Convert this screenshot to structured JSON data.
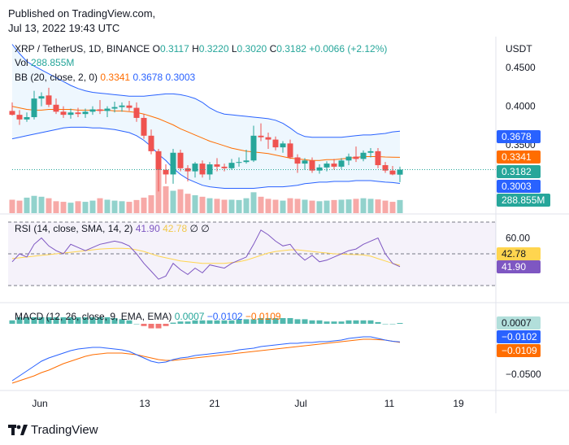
{
  "header": {
    "published": "Published on TradingView.com,",
    "date": "Jul 13, 2022 19:43 UTC"
  },
  "legend": {
    "symbol": "XRP / TetherUS, 1D, BINANCE",
    "o_label": "O",
    "o_value": "0.3117",
    "h_label": "H",
    "h_value": "0.3220",
    "l_label": "L",
    "l_value": "0.3020",
    "c_label": "C",
    "c_value": "0.3182",
    "change": "+0.0066 (+2.12%)",
    "vol_label": "Vol",
    "vol_value": "288.855M",
    "bb_label": "BB (20, close, 2, 0)",
    "bb_basis": "0.3341",
    "bb_upper": "0.3678",
    "bb_lower": "0.3003",
    "rsi_label": "RSI (14, close, SMA, 14, 2)",
    "rsi_value": "41.90",
    "rsi_sma": "42.78",
    "rsi_extra": "∅ ∅",
    "macd_label": "MACD (12, 26, close, 9, EMA, EMA)",
    "macd_hist": "0.0007",
    "macd_line": "−0.0102",
    "macd_signal": "−0.0109"
  },
  "axis": {
    "currency": "USDT",
    "price_ticks": [
      "0.4500",
      "0.4000",
      "0.3500"
    ],
    "rsi_ticks": [
      "60.00"
    ],
    "macd_ticks": [
      "−0.0500"
    ],
    "date_ticks": [
      "Jun",
      "13",
      "21",
      "Jul",
      "11",
      "19"
    ],
    "badges": {
      "bb_upper": "0.3678",
      "bb_basis": "0.3341",
      "close": "0.3182",
      "bb_lower": "0.3003",
      "volume": "288.855M",
      "rsi_sma": "42.78",
      "rsi": "41.90",
      "macd_hist": "0.0007",
      "macd_line": "−0.0102",
      "macd_signal": "−0.0109"
    }
  },
  "colors": {
    "up": "#26a69a",
    "down": "#ef5350",
    "bb_band": "#2962ff",
    "bb_basis": "#ff6d00",
    "rsi": "#7e57c2",
    "rsi_sma": "#ffd54f",
    "macd": "#2962ff",
    "signal": "#ff6d00"
  },
  "footer": {
    "brand": "TradingView"
  },
  "chart_data": {
    "type": "candlestick",
    "title": "XRP / TetherUS, 1D, BINANCE",
    "price_range": [
      0.262,
      0.49
    ],
    "candles": [
      {
        "o": 0.394,
        "h": 0.405,
        "l": 0.388,
        "c": 0.389
      },
      {
        "o": 0.389,
        "h": 0.395,
        "l": 0.376,
        "c": 0.383
      },
      {
        "o": 0.383,
        "h": 0.392,
        "l": 0.38,
        "c": 0.386
      },
      {
        "o": 0.386,
        "h": 0.42,
        "l": 0.383,
        "c": 0.41
      },
      {
        "o": 0.41,
        "h": 0.418,
        "l": 0.4,
        "c": 0.413
      },
      {
        "o": 0.414,
        "h": 0.424,
        "l": 0.399,
        "c": 0.402
      },
      {
        "o": 0.402,
        "h": 0.41,
        "l": 0.39,
        "c": 0.393
      },
      {
        "o": 0.393,
        "h": 0.4,
        "l": 0.385,
        "c": 0.389
      },
      {
        "o": 0.389,
        "h": 0.397,
        "l": 0.384,
        "c": 0.392
      },
      {
        "o": 0.392,
        "h": 0.398,
        "l": 0.386,
        "c": 0.39
      },
      {
        "o": 0.39,
        "h": 0.397,
        "l": 0.385,
        "c": 0.393
      },
      {
        "o": 0.393,
        "h": 0.4,
        "l": 0.389,
        "c": 0.396
      },
      {
        "o": 0.396,
        "h": 0.408,
        "l": 0.39,
        "c": 0.394
      },
      {
        "o": 0.394,
        "h": 0.4,
        "l": 0.386,
        "c": 0.397
      },
      {
        "o": 0.397,
        "h": 0.406,
        "l": 0.392,
        "c": 0.399
      },
      {
        "o": 0.399,
        "h": 0.405,
        "l": 0.393,
        "c": 0.401
      },
      {
        "o": 0.401,
        "h": 0.407,
        "l": 0.394,
        "c": 0.398
      },
      {
        "o": 0.398,
        "h": 0.405,
        "l": 0.38,
        "c": 0.385
      },
      {
        "o": 0.385,
        "h": 0.39,
        "l": 0.358,
        "c": 0.362
      },
      {
        "o": 0.362,
        "h": 0.37,
        "l": 0.338,
        "c": 0.342
      },
      {
        "o": 0.342,
        "h": 0.345,
        "l": 0.29,
        "c": 0.318
      },
      {
        "o": 0.318,
        "h": 0.325,
        "l": 0.3,
        "c": 0.312
      },
      {
        "o": 0.312,
        "h": 0.345,
        "l": 0.3,
        "c": 0.34
      },
      {
        "o": 0.34,
        "h": 0.344,
        "l": 0.316,
        "c": 0.32
      },
      {
        "o": 0.32,
        "h": 0.324,
        "l": 0.303,
        "c": 0.316
      },
      {
        "o": 0.316,
        "h": 0.328,
        "l": 0.308,
        "c": 0.326
      },
      {
        "o": 0.326,
        "h": 0.33,
        "l": 0.308,
        "c": 0.312
      },
      {
        "o": 0.312,
        "h": 0.328,
        "l": 0.305,
        "c": 0.325
      },
      {
        "o": 0.325,
        "h": 0.333,
        "l": 0.316,
        "c": 0.322
      },
      {
        "o": 0.322,
        "h": 0.326,
        "l": 0.316,
        "c": 0.32
      },
      {
        "o": 0.32,
        "h": 0.332,
        "l": 0.318,
        "c": 0.327
      },
      {
        "o": 0.327,
        "h": 0.334,
        "l": 0.322,
        "c": 0.328
      },
      {
        "o": 0.328,
        "h": 0.344,
        "l": 0.326,
        "c": 0.33
      },
      {
        "o": 0.33,
        "h": 0.375,
        "l": 0.328,
        "c": 0.362
      },
      {
        "o": 0.362,
        "h": 0.378,
        "l": 0.355,
        "c": 0.36
      },
      {
        "o": 0.36,
        "h": 0.366,
        "l": 0.345,
        "c": 0.357
      },
      {
        "o": 0.357,
        "h": 0.361,
        "l": 0.343,
        "c": 0.347
      },
      {
        "o": 0.347,
        "h": 0.355,
        "l": 0.34,
        "c": 0.352
      },
      {
        "o": 0.352,
        "h": 0.357,
        "l": 0.332,
        "c": 0.334
      },
      {
        "o": 0.334,
        "h": 0.338,
        "l": 0.314,
        "c": 0.326
      },
      {
        "o": 0.326,
        "h": 0.333,
        "l": 0.318,
        "c": 0.33
      },
      {
        "o": 0.33,
        "h": 0.334,
        "l": 0.314,
        "c": 0.317
      },
      {
        "o": 0.317,
        "h": 0.325,
        "l": 0.313,
        "c": 0.321
      },
      {
        "o": 0.321,
        "h": 0.329,
        "l": 0.316,
        "c": 0.326
      },
      {
        "o": 0.326,
        "h": 0.332,
        "l": 0.318,
        "c": 0.322
      },
      {
        "o": 0.322,
        "h": 0.333,
        "l": 0.319,
        "c": 0.33
      },
      {
        "o": 0.33,
        "h": 0.339,
        "l": 0.324,
        "c": 0.335
      },
      {
        "o": 0.335,
        "h": 0.348,
        "l": 0.328,
        "c": 0.332
      },
      {
        "o": 0.332,
        "h": 0.343,
        "l": 0.329,
        "c": 0.34
      },
      {
        "o": 0.34,
        "h": 0.346,
        "l": 0.334,
        "c": 0.342
      },
      {
        "o": 0.342,
        "h": 0.346,
        "l": 0.32,
        "c": 0.324
      },
      {
        "o": 0.324,
        "h": 0.328,
        "l": 0.314,
        "c": 0.317
      },
      {
        "o": 0.317,
        "h": 0.323,
        "l": 0.311,
        "c": 0.312
      },
      {
        "o": 0.3117,
        "h": 0.322,
        "l": 0.302,
        "c": 0.3182
      }
    ],
    "bb_upper": [
      0.48,
      0.468,
      0.458,
      0.452,
      0.447,
      0.442,
      0.437,
      0.432,
      0.427,
      0.423,
      0.42,
      0.418,
      0.417,
      0.416,
      0.415,
      0.414,
      0.413,
      0.413,
      0.413,
      0.414,
      0.415,
      0.416,
      0.416,
      0.415,
      0.413,
      0.41,
      0.405,
      0.398,
      0.393,
      0.39,
      0.389,
      0.388,
      0.387,
      0.386,
      0.385,
      0.384,
      0.382,
      0.378,
      0.372,
      0.365,
      0.361,
      0.36,
      0.36,
      0.36,
      0.36,
      0.36,
      0.361,
      0.362,
      0.363,
      0.363,
      0.364,
      0.365,
      0.367,
      0.3678
    ],
    "bb_basis": [
      0.4,
      0.398,
      0.396,
      0.395,
      0.395,
      0.396,
      0.396,
      0.396,
      0.396,
      0.395,
      0.395,
      0.395,
      0.395,
      0.395,
      0.394,
      0.394,
      0.393,
      0.392,
      0.39,
      0.387,
      0.384,
      0.38,
      0.376,
      0.371,
      0.367,
      0.363,
      0.359,
      0.355,
      0.352,
      0.349,
      0.346,
      0.344,
      0.342,
      0.341,
      0.34,
      0.339,
      0.337,
      0.335,
      0.333,
      0.332,
      0.331,
      0.33,
      0.33,
      0.331,
      0.331,
      0.332,
      0.333,
      0.334,
      0.335,
      0.335,
      0.335,
      0.3345,
      0.3343,
      0.3341
    ],
    "bb_lower": [
      0.358,
      0.36,
      0.362,
      0.364,
      0.366,
      0.368,
      0.37,
      0.372,
      0.373,
      0.373,
      0.373,
      0.372,
      0.372,
      0.371,
      0.37,
      0.368,
      0.366,
      0.362,
      0.356,
      0.348,
      0.338,
      0.33,
      0.32,
      0.312,
      0.306,
      0.302,
      0.298,
      0.296,
      0.295,
      0.294,
      0.294,
      0.294,
      0.294,
      0.294,
      0.295,
      0.296,
      0.296,
      0.296,
      0.297,
      0.298,
      0.3,
      0.301,
      0.302,
      0.302,
      0.303,
      0.303,
      0.303,
      0.304,
      0.304,
      0.304,
      0.303,
      0.302,
      0.3015,
      0.3003
    ],
    "volume": [
      45,
      42,
      52,
      58,
      55,
      50,
      40,
      38,
      35,
      40,
      38,
      42,
      50,
      45,
      42,
      40,
      38,
      44,
      52,
      60,
      150,
      90,
      75,
      80,
      65,
      60,
      55,
      50,
      48,
      45,
      45,
      44,
      50,
      70,
      55,
      48,
      45,
      42,
      50,
      48,
      45,
      42,
      40,
      42,
      44,
      45,
      46,
      48,
      50,
      48,
      46,
      42,
      38,
      44
    ],
    "rsi": [
      45,
      50,
      48,
      56,
      60,
      55,
      52,
      50,
      56,
      54,
      52,
      54,
      56,
      57,
      58,
      57,
      55,
      50,
      44,
      39,
      34,
      36,
      44,
      40,
      37,
      41,
      38,
      43,
      42,
      41,
      44,
      46,
      48,
      56,
      65,
      62,
      58,
      55,
      56,
      50,
      46,
      49,
      45,
      46,
      48,
      50,
      52,
      53,
      56,
      58,
      60,
      50,
      44,
      41.9
    ],
    "rsi_sma": [
      47,
      47.5,
      48,
      48.5,
      49,
      49.5,
      50,
      50.5,
      51,
      51.5,
      52,
      52.5,
      53,
      53.3,
      53.5,
      53.5,
      53.3,
      52.5,
      51.5,
      50,
      48.5,
      47.5,
      46.5,
      45.5,
      45,
      44.5,
      44,
      44,
      44,
      44,
      44.5,
      45,
      46,
      47.5,
      49,
      50.5,
      51.5,
      52,
      52.5,
      52.5,
      52,
      51.5,
      51,
      50.5,
      50,
      49.8,
      49.6,
      49.5,
      49.3,
      48.5,
      47,
      45.5,
      44,
      42.78
    ],
    "macd": [
      -0.058,
      -0.052,
      -0.046,
      -0.04,
      -0.034,
      -0.03,
      -0.027,
      -0.024,
      -0.021,
      -0.019,
      -0.018,
      -0.017,
      -0.017,
      -0.018,
      -0.019,
      -0.02,
      -0.022,
      -0.026,
      -0.03,
      -0.034,
      -0.036,
      -0.035,
      -0.032,
      -0.03,
      -0.029,
      -0.027,
      -0.026,
      -0.025,
      -0.024,
      -0.023,
      -0.022,
      -0.02,
      -0.019,
      -0.018,
      -0.016,
      -0.015,
      -0.014,
      -0.013,
      -0.012,
      -0.012,
      -0.011,
      -0.011,
      -0.01,
      -0.01,
      -0.009,
      -0.008,
      -0.006,
      -0.005,
      -0.004,
      -0.004,
      -0.006,
      -0.008,
      -0.0095,
      -0.0102
    ],
    "signal": [
      -0.061,
      -0.058,
      -0.055,
      -0.052,
      -0.048,
      -0.045,
      -0.041,
      -0.037,
      -0.034,
      -0.031,
      -0.028,
      -0.026,
      -0.025,
      -0.024,
      -0.024,
      -0.024,
      -0.025,
      -0.026,
      -0.028,
      -0.03,
      -0.032,
      -0.033,
      -0.033,
      -0.032,
      -0.031,
      -0.03,
      -0.029,
      -0.028,
      -0.027,
      -0.026,
      -0.025,
      -0.024,
      -0.023,
      -0.022,
      -0.021,
      -0.02,
      -0.019,
      -0.018,
      -0.017,
      -0.016,
      -0.015,
      -0.014,
      -0.013,
      -0.012,
      -0.011,
      -0.01,
      -0.009,
      -0.008,
      -0.007,
      -0.007,
      -0.0075,
      -0.008,
      -0.0095,
      -0.0109
    ]
  }
}
